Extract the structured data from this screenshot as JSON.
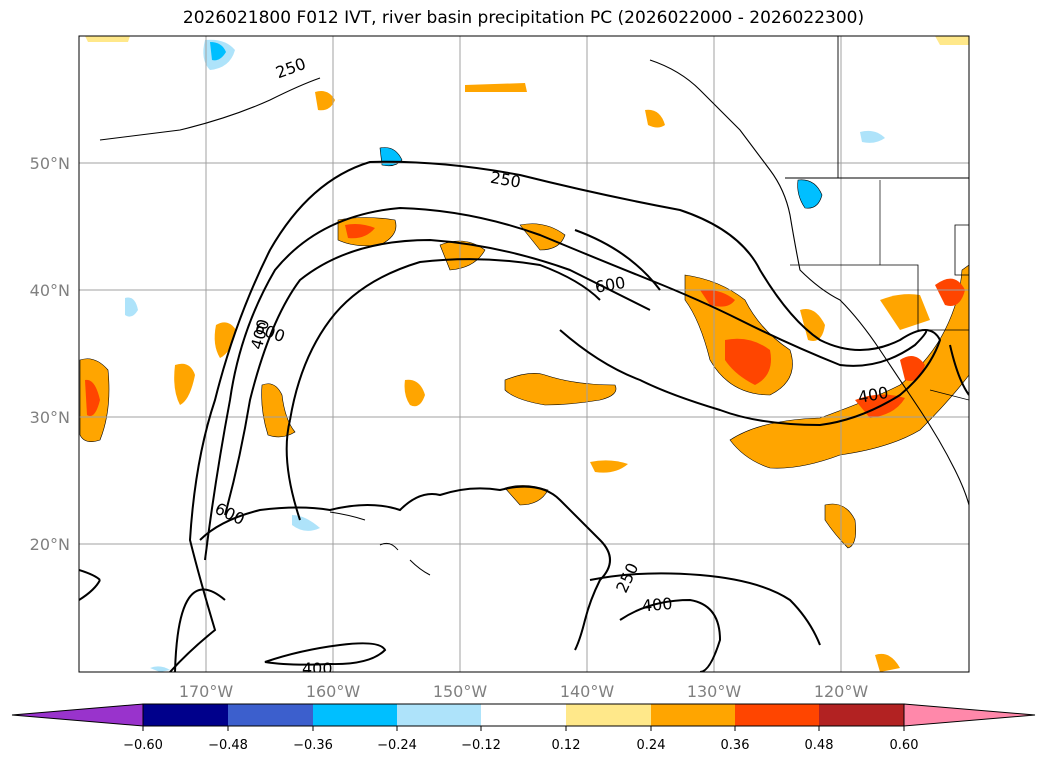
{
  "title": "2026021800 F012 IVT, river basin precipitation PC (2026022000 - 2026022300)",
  "map": {
    "lon_ticks": [
      "170°W",
      "160°W",
      "150°W",
      "140°W",
      "130°W",
      "120°W"
    ],
    "lat_ticks": [
      "50°N",
      "40°N",
      "30°N",
      "20°N"
    ],
    "contour_labels": [
      "250",
      "250",
      "250",
      "400",
      "400",
      "400",
      "400",
      "600",
      "600",
      "600"
    ]
  },
  "colorbar": {
    "colors": [
      "#9933cc",
      "#00008b",
      "#3c5fcd",
      "#00bfff",
      "#aee3fa",
      "#ffffff",
      "#ffe88a",
      "#ffa500",
      "#ff4500",
      "#b22222",
      "#ff88aa"
    ],
    "ticks": [
      "−0.60",
      "−0.48",
      "−0.36",
      "−0.24",
      "−0.12",
      "0.12",
      "0.24",
      "0.36",
      "0.48",
      "0.60"
    ]
  }
}
